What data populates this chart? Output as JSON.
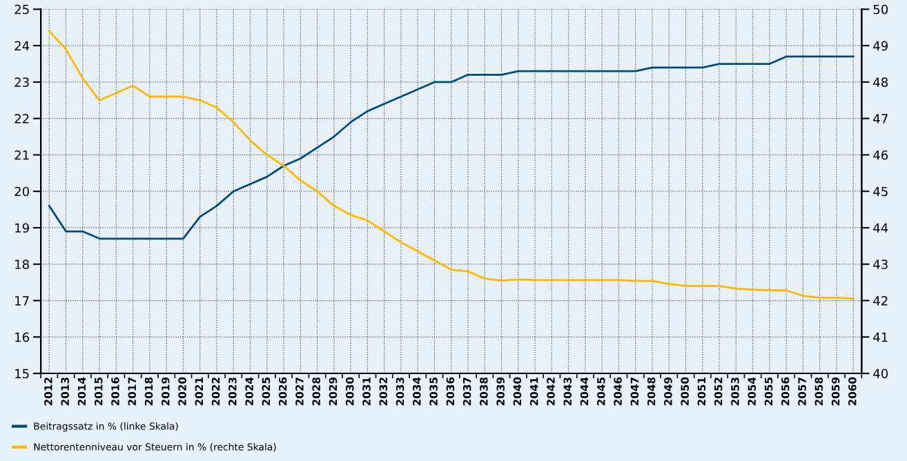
{
  "chart_data": {
    "type": "line",
    "categories": [
      "2012",
      "2013",
      "2014",
      "2015",
      "2016",
      "2017",
      "2018",
      "2019",
      "2020",
      "2021",
      "2022",
      "2023",
      "2024",
      "2025",
      "2026",
      "2027",
      "2028",
      "2029",
      "2030",
      "2031",
      "2032",
      "2033",
      "2034",
      "2035",
      "2036",
      "2037",
      "2038",
      "2039",
      "2040",
      "2041",
      "2042",
      "2043",
      "2044",
      "2045",
      "2046",
      "2047",
      "2048",
      "2049",
      "2050",
      "2051",
      "2052",
      "2053",
      "2054",
      "2055",
      "2056",
      "2057",
      "2058",
      "2059",
      "2060"
    ],
    "series": [
      {
        "name": "Beitragssatz in % (linke Skala)",
        "color": "#004a7f",
        "values": [
          19.6,
          18.9,
          18.9,
          18.7,
          18.7,
          18.7,
          18.7,
          18.7,
          18.7,
          19.3,
          19.6,
          20.0,
          20.2,
          20.4,
          20.7,
          20.9,
          21.2,
          21.5,
          21.9,
          22.2,
          22.4,
          22.6,
          22.8,
          23.0,
          23.0,
          23.2,
          23.2,
          23.2,
          23.3,
          23.3,
          23.3,
          23.3,
          23.3,
          23.3,
          23.3,
          23.3,
          23.4,
          23.4,
          23.4,
          23.4,
          23.5,
          23.5,
          23.5,
          23.5,
          23.7,
          23.7,
          23.7,
          23.7,
          23.7
        ]
      },
      {
        "name": "Nettorentenniveau vor Steuern in % (rechte Skala)",
        "color": "#fbb900",
        "axis": "y2",
        "values": [
          49.4,
          48.9,
          48.1,
          47.5,
          47.7,
          47.9,
          47.6,
          47.6,
          47.6,
          47.5,
          47.3,
          46.9,
          46.4,
          46.0,
          45.7,
          45.3,
          45.0,
          44.6,
          44.35,
          44.2,
          43.9,
          43.6,
          43.35,
          43.1,
          42.85,
          42.8,
          42.6,
          42.55,
          42.58,
          42.56,
          42.56,
          42.56,
          42.56,
          42.56,
          42.56,
          42.54,
          42.54,
          42.46,
          42.4,
          42.4,
          42.4,
          42.33,
          42.3,
          42.28,
          42.28,
          42.13,
          42.08,
          42.08,
          42.05
        ]
      }
    ],
    "ylim": [
      15,
      25
    ],
    "yticks": [
      15,
      16,
      17,
      18,
      19,
      20,
      21,
      22,
      23,
      24,
      25
    ],
    "y2lim": [
      40,
      50
    ],
    "y2ticks": [
      40,
      41,
      42,
      43,
      44,
      45,
      46,
      47,
      48,
      49,
      50
    ],
    "grid": true,
    "legend": "bottom left",
    "line_style": "solid",
    "marker": "none"
  }
}
